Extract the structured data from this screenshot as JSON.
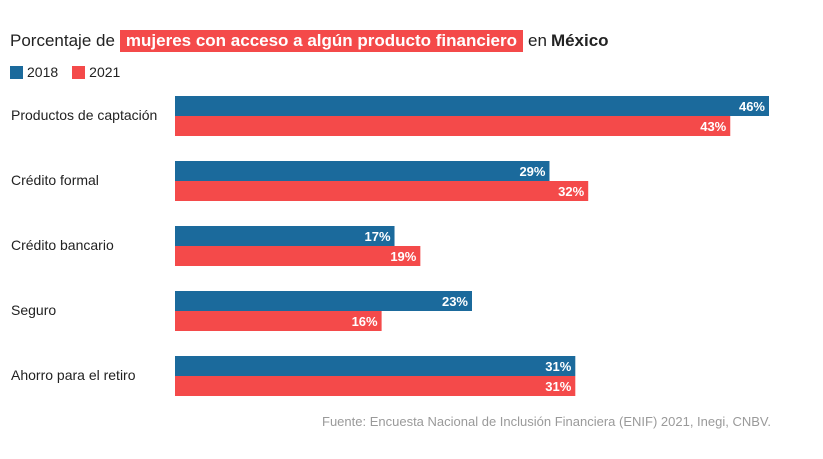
{
  "title": {
    "prefix": "Porcentaje de",
    "highlight": "mujeres con acceso a algún producto financiero",
    "middle": "en",
    "bold": "México"
  },
  "colors": {
    "s2018": "#1b6a9c",
    "s2021": "#f44a4a"
  },
  "source": "Fuente: Encuesta Nacional de Inclusión Financiera (ENIF) 2021, Inegi, CNBV.",
  "chart_data": {
    "type": "bar",
    "orientation": "horizontal",
    "title": "Porcentaje de mujeres con acceso a algún producto financiero en México",
    "categories": [
      "Productos de captación",
      "Crédito formal",
      "Crédito bancario",
      "Seguro",
      "Ahorro para el retiro"
    ],
    "series": [
      {
        "name": "2018",
        "values": [
          46,
          29,
          17,
          23,
          31
        ],
        "labels": [
          "46%",
          "29%",
          "17%",
          "23%",
          "31%"
        ],
        "color": "#1b6a9c"
      },
      {
        "name": "2021",
        "values": [
          43,
          32,
          19,
          16,
          31
        ],
        "labels": [
          "43%",
          "32%",
          "19%",
          "16%",
          "31%"
        ],
        "color": "#f44a4a"
      }
    ],
    "xlim": [
      0,
      46
    ],
    "grid": false,
    "legend": "top-left",
    "value_labels": "inside-end"
  }
}
